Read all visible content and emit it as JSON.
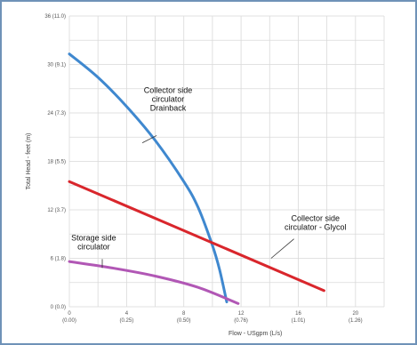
{
  "chart_data": {
    "type": "line",
    "xlabel": "Flow - USgpm (L/s)",
    "ylabel": "Total Head - feet (m)",
    "xlim": [
      0,
      22
    ],
    "ylim": [
      0,
      36
    ],
    "x_ticks": [
      {
        "value": 0,
        "line1": "0",
        "line2": "(0.00)"
      },
      {
        "value": 4,
        "line1": "4",
        "line2": "(0.25)"
      },
      {
        "value": 8,
        "line1": "8",
        "line2": "(0.50)"
      },
      {
        "value": 12,
        "line1": "12",
        "line2": "(0.76)"
      },
      {
        "value": 16,
        "line1": "16",
        "line2": "(1.01)"
      },
      {
        "value": 20,
        "line1": "20",
        "line2": "(1.26)"
      }
    ],
    "y_ticks": [
      {
        "value": 0,
        "label": "0 (0.0)"
      },
      {
        "value": 6,
        "label": "6 (1.8)"
      },
      {
        "value": 12,
        "label": "12 (3.7)"
      },
      {
        "value": 18,
        "label": "18 (5.5)"
      },
      {
        "value": 24,
        "label": "24 (7.3)"
      },
      {
        "value": 30,
        "label": "30 (9.1)"
      },
      {
        "value": 36,
        "label": "36 (11.0)"
      }
    ],
    "series": [
      {
        "name": "Collector side circulator Drainback",
        "color": "#3f88cf",
        "points": [
          [
            0,
            31.3
          ],
          [
            2,
            28.4
          ],
          [
            4,
            24.8
          ],
          [
            6,
            20.6
          ],
          [
            8,
            15.5
          ],
          [
            9,
            12.3
          ],
          [
            10,
            7.6
          ],
          [
            10.5,
            4.6
          ],
          [
            11,
            0.6
          ]
        ]
      },
      {
        "name": "Collector side circulator - Glycol",
        "color": "#d9262c",
        "points": [
          [
            0,
            15.5
          ],
          [
            17.8,
            2.0
          ]
        ]
      },
      {
        "name": "Storage side circulator",
        "color": "#b157b5",
        "points": [
          [
            0,
            5.6
          ],
          [
            3,
            4.8
          ],
          [
            6,
            3.8
          ],
          [
            9,
            2.4
          ],
          [
            11.8,
            0.4
          ]
        ]
      }
    ],
    "annotations": [
      {
        "lines": [
          "Collector side",
          "circulator",
          "Drainback"
        ],
        "x": 6.9,
        "y": 26.5,
        "lead_from": [
          6.1,
          21.2
        ],
        "lead_to": [
          5.1,
          20.3
        ]
      },
      {
        "lines": [
          "Collector side",
          "circulator - Glycol"
        ],
        "x": 17.2,
        "y": 10.6,
        "lead_from": [
          15.7,
          8.4
        ],
        "lead_to": [
          14.1,
          6.0
        ]
      },
      {
        "lines": [
          "Storage side",
          "circulator"
        ],
        "x": 1.7,
        "y": 8.2,
        "lead_from": [
          2.3,
          5.9
        ],
        "lead_to": [
          2.3,
          4.8
        ]
      }
    ],
    "grid": true
  }
}
